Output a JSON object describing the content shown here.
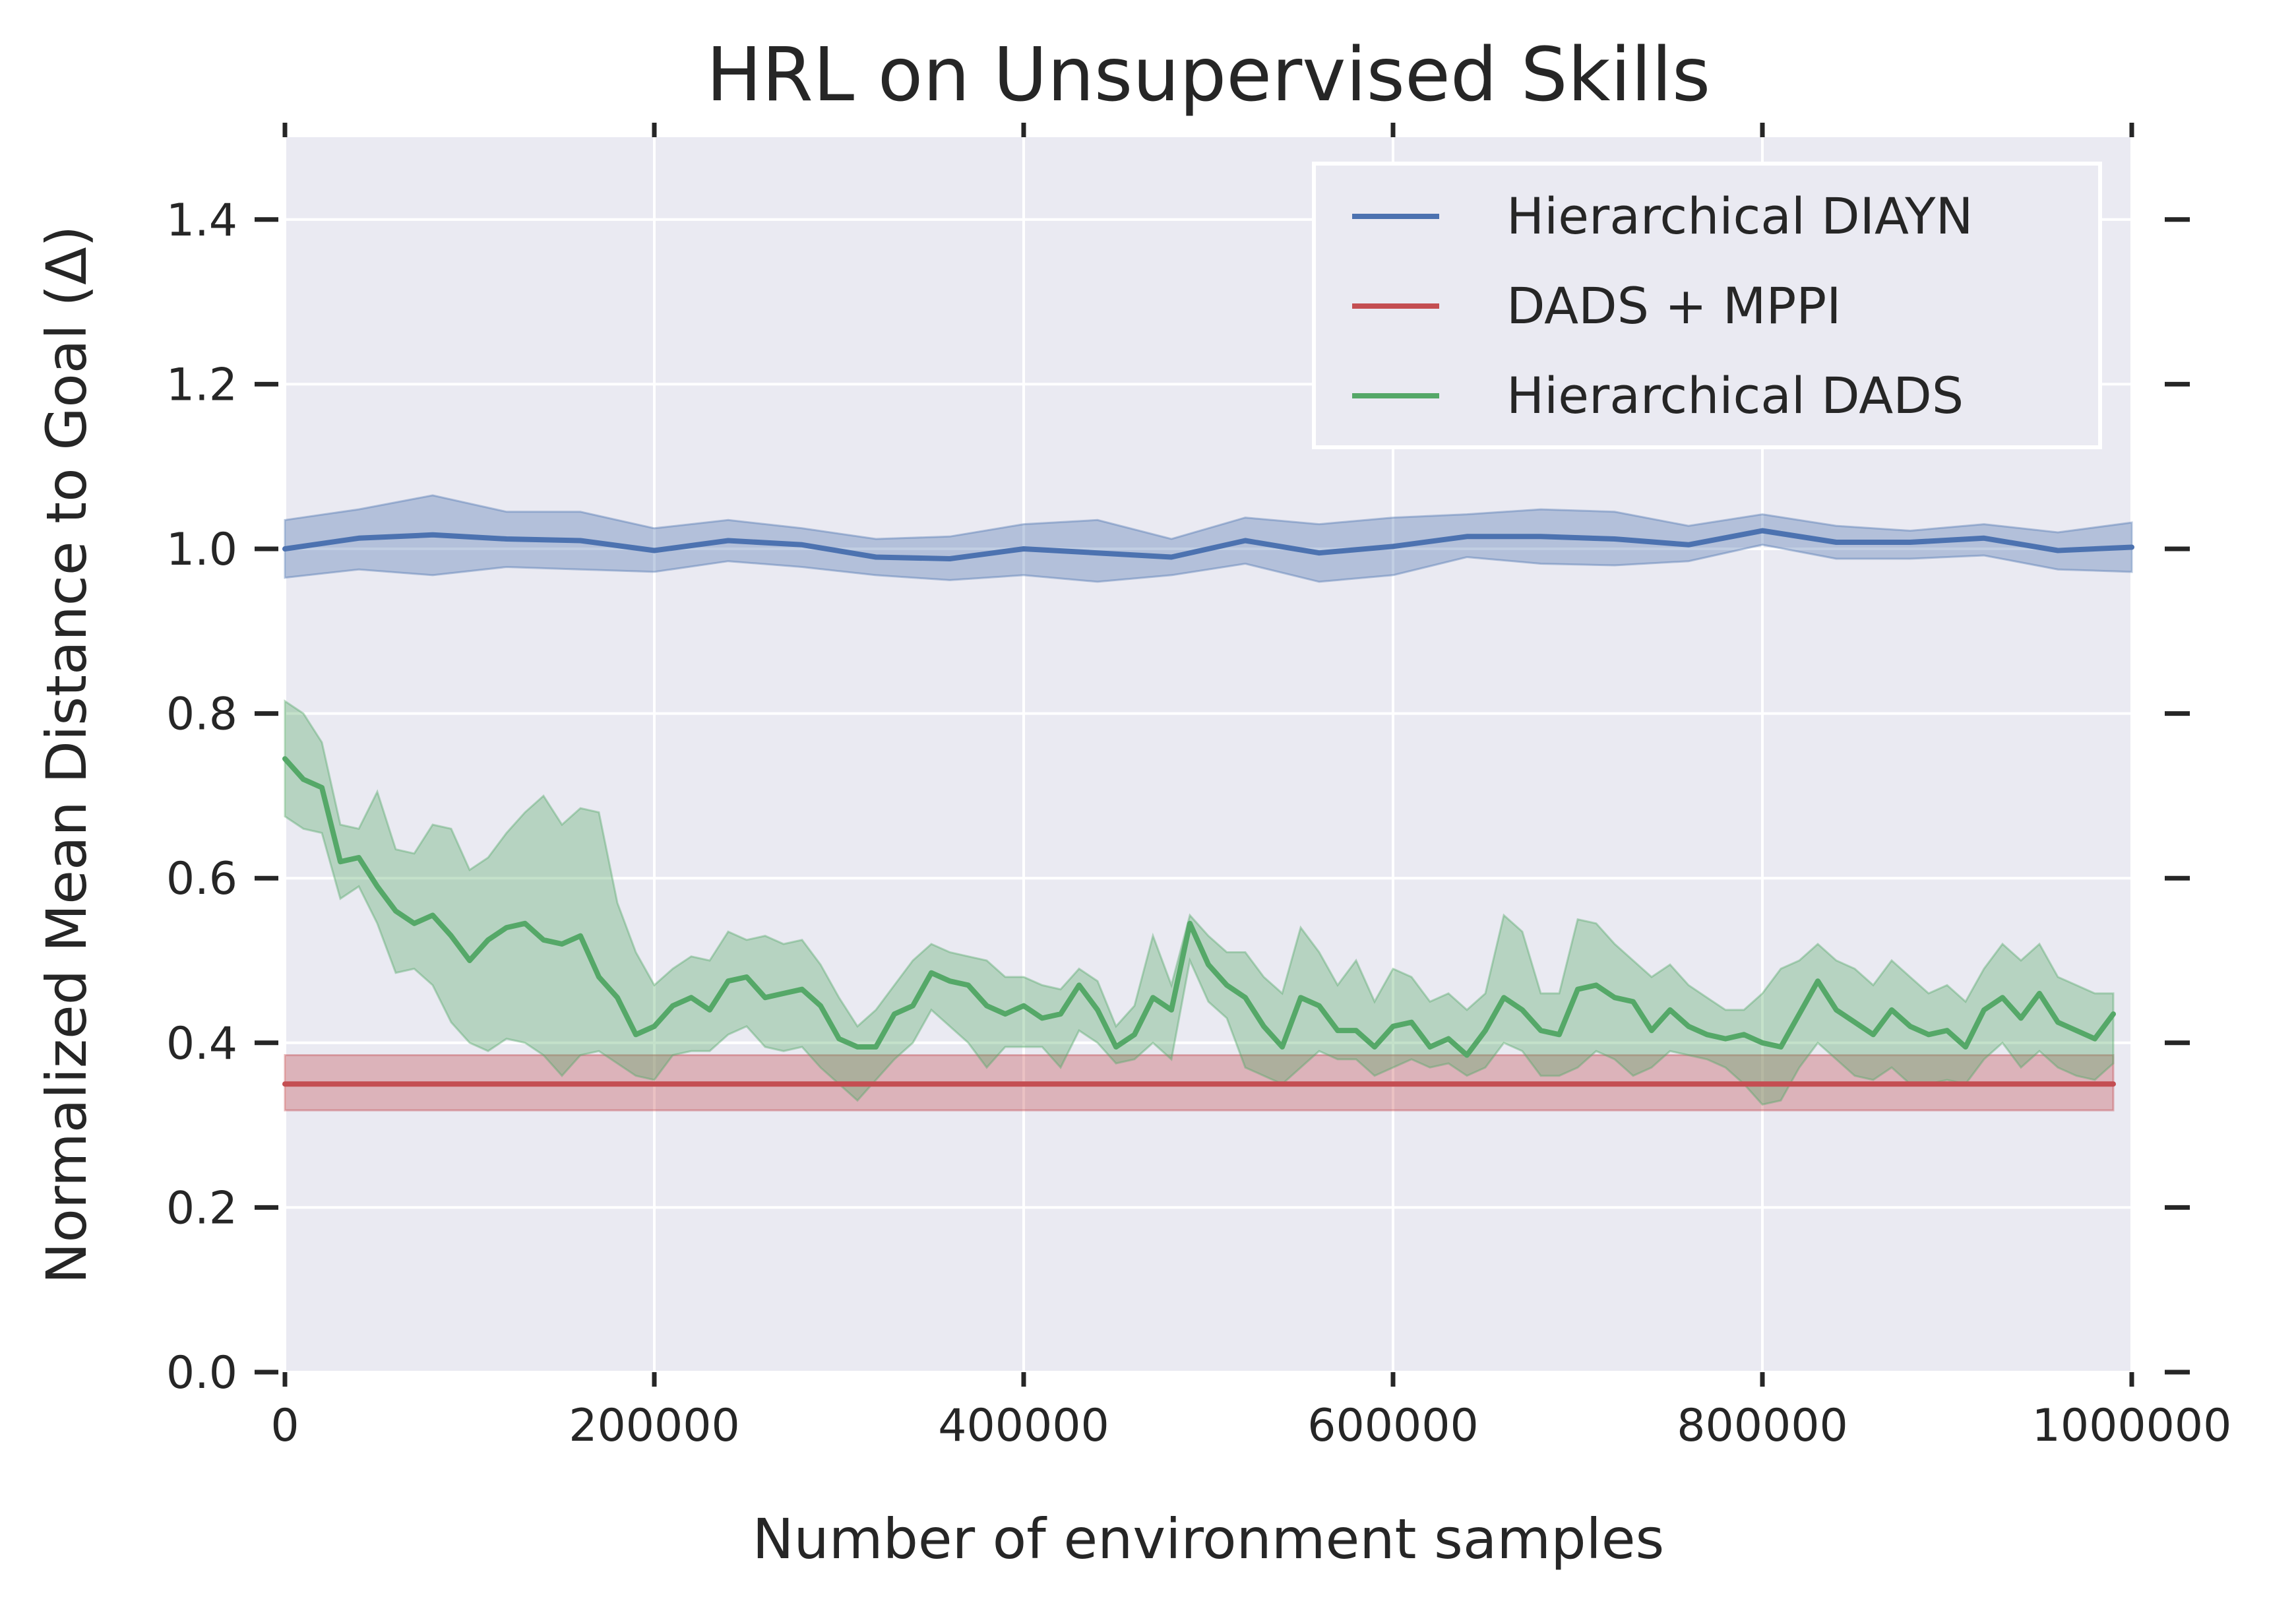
{
  "chart_data": {
    "type": "line",
    "title": "HRL on Unsupervised Skills",
    "xlabel": "Number of environment samples",
    "ylabel": "Normalized Mean Distance to Goal (Δ)",
    "xlim": [
      0,
      1000000
    ],
    "ylim": [
      0,
      1.5
    ],
    "x_ticks": [
      0,
      200000,
      400000,
      600000,
      800000,
      1000000
    ],
    "x_tick_labels": [
      "0",
      "200000",
      "400000",
      "600000",
      "800000",
      "1000000"
    ],
    "y_ticks": [
      0,
      0.2,
      0.4,
      0.6,
      0.8,
      1.0,
      1.2,
      1.4
    ],
    "y_tick_labels": [
      "0.0",
      "0.2",
      "0.4",
      "0.6",
      "0.8",
      "1.0",
      "1.2",
      "1.4"
    ],
    "grid": true,
    "legend_position": "top-right",
    "background_color": "#eaeaf2",
    "series": [
      {
        "name": "Hierarchical DIAYN",
        "color": "#4c72b0",
        "x": [
          0,
          40000,
          80000,
          120000,
          160000,
          200000,
          240000,
          280000,
          320000,
          360000,
          400000,
          440000,
          480000,
          520000,
          560000,
          600000,
          640000,
          680000,
          720000,
          760000,
          800000,
          840000,
          880000,
          920000,
          960000,
          1000000
        ],
        "y": [
          1.0,
          1.013,
          1.017,
          1.012,
          1.01,
          0.998,
          1.01,
          1.005,
          0.99,
          0.988,
          1.0,
          0.995,
          0.99,
          1.01,
          0.995,
          1.003,
          1.015,
          1.015,
          1.012,
          1.005,
          1.022,
          1.008,
          1.008,
          1.013,
          0.998,
          1.002
        ],
        "lower": [
          0.965,
          0.975,
          0.968,
          0.978,
          0.975,
          0.972,
          0.985,
          0.978,
          0.968,
          0.962,
          0.968,
          0.96,
          0.968,
          0.982,
          0.96,
          0.968,
          0.99,
          0.982,
          0.98,
          0.985,
          1.005,
          0.988,
          0.988,
          0.992,
          0.975,
          0.972
        ],
        "upper": [
          1.035,
          1.048,
          1.065,
          1.045,
          1.045,
          1.025,
          1.035,
          1.025,
          1.012,
          1.015,
          1.03,
          1.035,
          1.012,
          1.038,
          1.03,
          1.038,
          1.042,
          1.048,
          1.045,
          1.028,
          1.042,
          1.028,
          1.022,
          1.03,
          1.02,
          1.032
        ]
      },
      {
        "name": "DADS + MPPI",
        "color": "#c44e52",
        "x": [
          0,
          990000
        ],
        "y": [
          0.35,
          0.35
        ],
        "lower": [
          0.318,
          0.318
        ],
        "upper": [
          0.385,
          0.385
        ]
      },
      {
        "name": "Hierarchical DADS",
        "color": "#55a868",
        "x": [
          0,
          10000,
          20000,
          30000,
          40000,
          50000,
          60000,
          70000,
          80000,
          90000,
          100000,
          110000,
          120000,
          130000,
          140000,
          150000,
          160000,
          170000,
          180000,
          190000,
          200000,
          210000,
          220000,
          230000,
          240000,
          250000,
          260000,
          270000,
          280000,
          290000,
          300000,
          310000,
          320000,
          330000,
          340000,
          350000,
          360000,
          370000,
          380000,
          390000,
          400000,
          410000,
          420000,
          430000,
          440000,
          450000,
          460000,
          470000,
          480000,
          490000,
          500000,
          510000,
          520000,
          530000,
          540000,
          550000,
          560000,
          570000,
          580000,
          590000,
          600000,
          610000,
          620000,
          630000,
          640000,
          650000,
          660000,
          670000,
          680000,
          690000,
          700000,
          710000,
          720000,
          730000,
          740000,
          750000,
          760000,
          770000,
          780000,
          790000,
          800000,
          810000,
          820000,
          830000,
          840000,
          850000,
          860000,
          870000,
          880000,
          890000,
          900000,
          910000,
          920000,
          930000,
          940000,
          950000,
          960000,
          970000,
          980000,
          990000
        ],
        "y": [
          0.745,
          0.72,
          0.71,
          0.62,
          0.625,
          0.59,
          0.56,
          0.545,
          0.555,
          0.53,
          0.5,
          0.525,
          0.54,
          0.545,
          0.525,
          0.52,
          0.53,
          0.48,
          0.455,
          0.41,
          0.42,
          0.445,
          0.455,
          0.44,
          0.475,
          0.48,
          0.455,
          0.46,
          0.465,
          0.445,
          0.405,
          0.395,
          0.395,
          0.435,
          0.445,
          0.485,
          0.475,
          0.47,
          0.445,
          0.435,
          0.445,
          0.43,
          0.435,
          0.47,
          0.44,
          0.395,
          0.41,
          0.455,
          0.44,
          0.545,
          0.495,
          0.47,
          0.455,
          0.42,
          0.395,
          0.455,
          0.445,
          0.415,
          0.415,
          0.395,
          0.42,
          0.425,
          0.395,
          0.405,
          0.385,
          0.415,
          0.455,
          0.44,
          0.415,
          0.41,
          0.465,
          0.47,
          0.455,
          0.45,
          0.415,
          0.44,
          0.42,
          0.41,
          0.405,
          0.41,
          0.4,
          0.395,
          0.435,
          0.475,
          0.44,
          0.425,
          0.41,
          0.44,
          0.42,
          0.41,
          0.415,
          0.395,
          0.44,
          0.455,
          0.43,
          0.46,
          0.425,
          0.415,
          0.405,
          0.435
        ],
        "lower": [
          0.675,
          0.66,
          0.655,
          0.575,
          0.59,
          0.545,
          0.485,
          0.49,
          0.47,
          0.425,
          0.4,
          0.39,
          0.405,
          0.4,
          0.385,
          0.36,
          0.385,
          0.39,
          0.375,
          0.36,
          0.355,
          0.385,
          0.39,
          0.39,
          0.41,
          0.42,
          0.395,
          0.39,
          0.395,
          0.37,
          0.35,
          0.33,
          0.355,
          0.38,
          0.4,
          0.44,
          0.42,
          0.4,
          0.37,
          0.395,
          0.395,
          0.395,
          0.37,
          0.415,
          0.4,
          0.375,
          0.38,
          0.4,
          0.38,
          0.5,
          0.45,
          0.43,
          0.37,
          0.36,
          0.35,
          0.37,
          0.39,
          0.38,
          0.38,
          0.36,
          0.37,
          0.38,
          0.37,
          0.375,
          0.36,
          0.37,
          0.4,
          0.39,
          0.36,
          0.36,
          0.37,
          0.39,
          0.38,
          0.36,
          0.37,
          0.39,
          0.385,
          0.38,
          0.37,
          0.35,
          0.325,
          0.33,
          0.37,
          0.4,
          0.38,
          0.36,
          0.355,
          0.37,
          0.35,
          0.35,
          0.355,
          0.35,
          0.38,
          0.4,
          0.37,
          0.39,
          0.37,
          0.36,
          0.355,
          0.375
        ],
        "upper": [
          0.815,
          0.8,
          0.765,
          0.665,
          0.66,
          0.705,
          0.635,
          0.63,
          0.665,
          0.66,
          0.61,
          0.625,
          0.655,
          0.68,
          0.7,
          0.665,
          0.685,
          0.68,
          0.57,
          0.51,
          0.47,
          0.49,
          0.505,
          0.5,
          0.535,
          0.525,
          0.53,
          0.52,
          0.525,
          0.495,
          0.455,
          0.42,
          0.44,
          0.47,
          0.5,
          0.52,
          0.51,
          0.505,
          0.5,
          0.48,
          0.48,
          0.47,
          0.465,
          0.49,
          0.475,
          0.42,
          0.445,
          0.53,
          0.47,
          0.555,
          0.53,
          0.51,
          0.51,
          0.48,
          0.46,
          0.54,
          0.51,
          0.47,
          0.5,
          0.45,
          0.49,
          0.48,
          0.45,
          0.46,
          0.44,
          0.46,
          0.555,
          0.535,
          0.46,
          0.46,
          0.55,
          0.545,
          0.52,
          0.5,
          0.48,
          0.495,
          0.47,
          0.455,
          0.44,
          0.44,
          0.46,
          0.49,
          0.5,
          0.52,
          0.5,
          0.49,
          0.47,
          0.5,
          0.48,
          0.46,
          0.47,
          0.45,
          0.49,
          0.52,
          0.5,
          0.52,
          0.48,
          0.47,
          0.46,
          0.46
        ]
      }
    ]
  }
}
